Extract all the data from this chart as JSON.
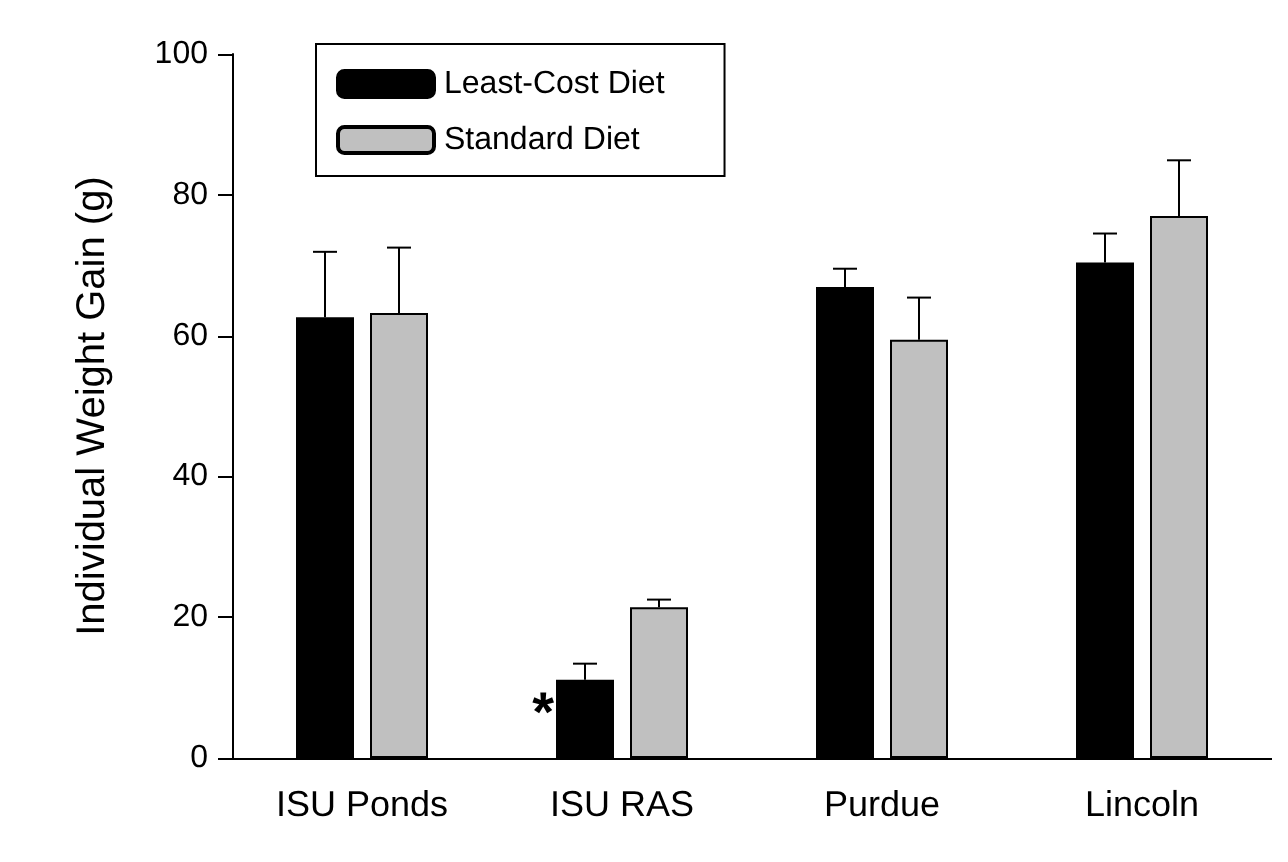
{
  "chart_data": {
    "type": "bar",
    "ylabel": "Individual Weight Gain (g)",
    "categories": [
      "ISU Ponds",
      "ISU RAS",
      "Purdue",
      "Lincoln"
    ],
    "series": [
      {
        "name": "Least-Cost Diet",
        "color": "#000000",
        "values": [
          62.6,
          11.1,
          66.9,
          70.4
        ],
        "errors": [
          [
            62.6,
            71.9
          ],
          [
            11.1,
            13.4
          ],
          [
            66.9,
            69.5
          ],
          [
            70.4,
            74.5
          ]
        ]
      },
      {
        "name": "Standard Diet",
        "color": "#c0c0c0",
        "values": [
          63.2,
          21.4,
          59.4,
          77.0
        ],
        "errors": [
          [
            63.2,
            72.5
          ],
          [
            21.4,
            22.5
          ],
          [
            59.4,
            65.4
          ],
          [
            77.0,
            84.9
          ]
        ]
      }
    ],
    "ylim": [
      0,
      100
    ],
    "yticks": [
      0,
      20,
      40,
      60,
      80,
      100
    ],
    "annotations": [
      {
        "text": "*",
        "x": "ISU RAS",
        "y": 11.1
      }
    ],
    "grid": false,
    "legend": "top left"
  }
}
